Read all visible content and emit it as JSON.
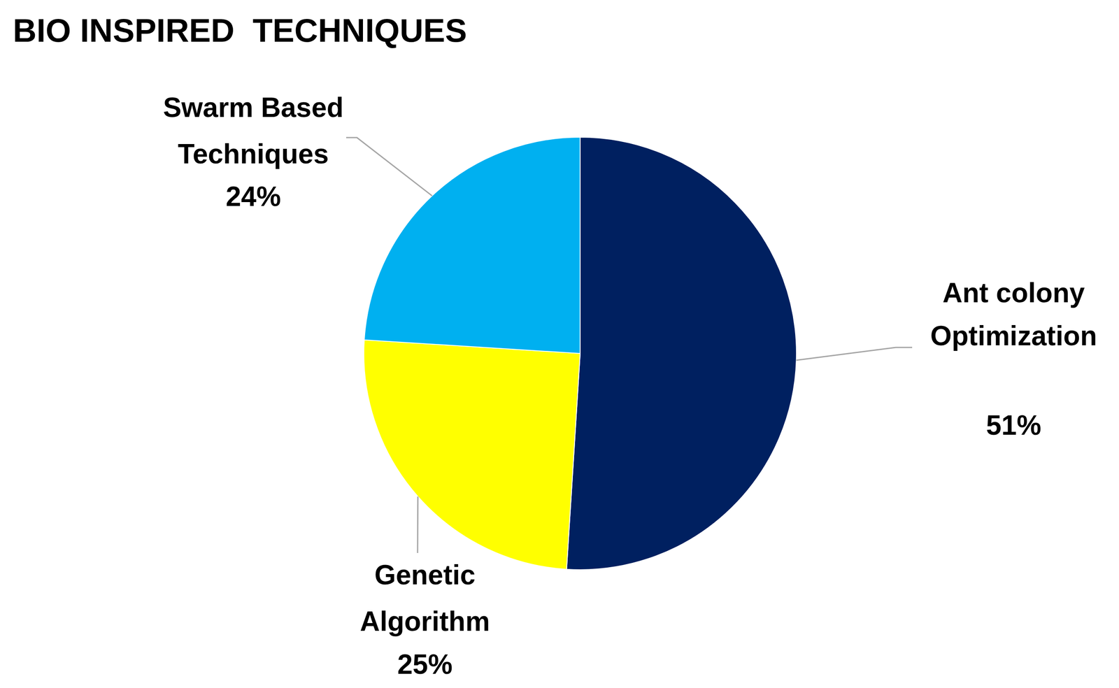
{
  "chart_data": {
    "type": "pie",
    "title": "BIO INSPIRED  TECHNIQUES",
    "categories": [
      "Ant colony Optimization",
      "Genetic Algorithm",
      "Swarm Based Techniques"
    ],
    "values": [
      51,
      25,
      24
    ],
    "value_labels": [
      "51%",
      "25%",
      "24%"
    ],
    "colors": [
      "#002060",
      "#ffff00",
      "#00b0f0"
    ],
    "data_labels": true
  }
}
